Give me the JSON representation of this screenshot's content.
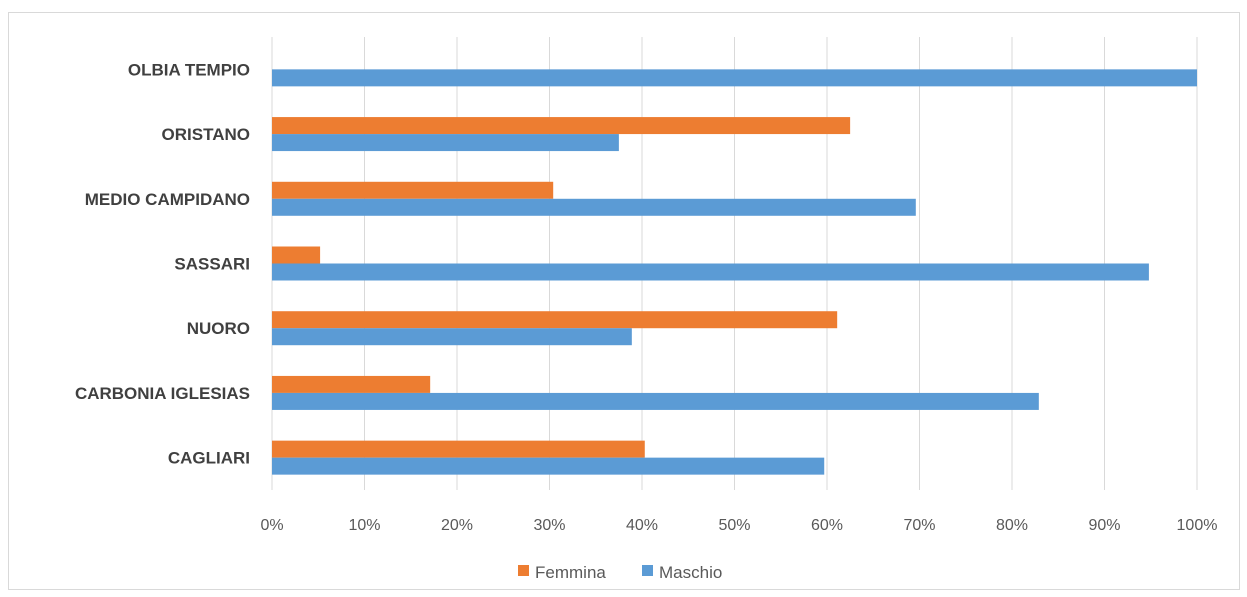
{
  "chart_data": {
    "type": "bar",
    "orientation": "horizontal",
    "categories": [
      "OLBIA TEMPIO",
      "ORISTANO",
      "MEDIO CAMPIDANO",
      "SASSARI",
      "NUORO",
      "CARBONIA IGLESIAS",
      "CAGLIARI"
    ],
    "series": [
      {
        "name": "Femmina",
        "color": "#ed7d31",
        "values": [
          0,
          62.5,
          30.4,
          5.2,
          61.1,
          17.1,
          40.3
        ]
      },
      {
        "name": "Maschio",
        "color": "#5b9bd5",
        "values": [
          100,
          37.5,
          69.6,
          94.8,
          38.9,
          82.9,
          59.7
        ]
      }
    ],
    "xlim": [
      0,
      100
    ],
    "x_ticks": [
      "0%",
      "10%",
      "20%",
      "30%",
      "40%",
      "50%",
      "60%",
      "70%",
      "80%",
      "90%",
      "100%"
    ],
    "grid": true,
    "legend": {
      "position": "bottom",
      "entries": [
        "Femmina",
        "Maschio"
      ]
    }
  }
}
